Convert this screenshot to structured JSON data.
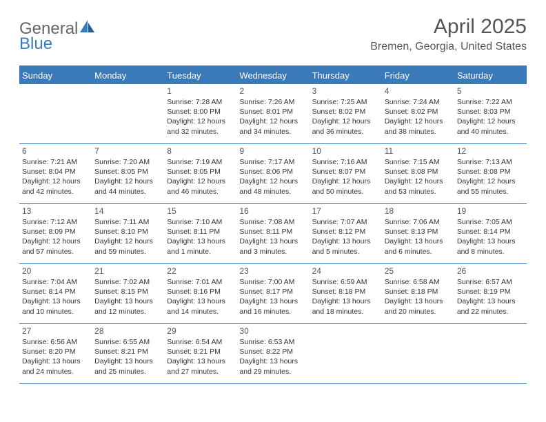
{
  "logo": {
    "word1": "General",
    "word2": "Blue"
  },
  "title": "April 2025",
  "location": "Bremen, Georgia, United States",
  "colors": {
    "brand": "#3a7ab8",
    "text": "#333333",
    "heading": "#555555",
    "background": "#ffffff"
  },
  "day_headers": [
    "Sunday",
    "Monday",
    "Tuesday",
    "Wednesday",
    "Thursday",
    "Friday",
    "Saturday"
  ],
  "weeks": [
    [
      null,
      null,
      {
        "n": "1",
        "sr": "Sunrise: 7:28 AM",
        "ss": "Sunset: 8:00 PM",
        "d1": "Daylight: 12 hours",
        "d2": "and 32 minutes."
      },
      {
        "n": "2",
        "sr": "Sunrise: 7:26 AM",
        "ss": "Sunset: 8:01 PM",
        "d1": "Daylight: 12 hours",
        "d2": "and 34 minutes."
      },
      {
        "n": "3",
        "sr": "Sunrise: 7:25 AM",
        "ss": "Sunset: 8:02 PM",
        "d1": "Daylight: 12 hours",
        "d2": "and 36 minutes."
      },
      {
        "n": "4",
        "sr": "Sunrise: 7:24 AM",
        "ss": "Sunset: 8:02 PM",
        "d1": "Daylight: 12 hours",
        "d2": "and 38 minutes."
      },
      {
        "n": "5",
        "sr": "Sunrise: 7:22 AM",
        "ss": "Sunset: 8:03 PM",
        "d1": "Daylight: 12 hours",
        "d2": "and 40 minutes."
      }
    ],
    [
      {
        "n": "6",
        "sr": "Sunrise: 7:21 AM",
        "ss": "Sunset: 8:04 PM",
        "d1": "Daylight: 12 hours",
        "d2": "and 42 minutes."
      },
      {
        "n": "7",
        "sr": "Sunrise: 7:20 AM",
        "ss": "Sunset: 8:05 PM",
        "d1": "Daylight: 12 hours",
        "d2": "and 44 minutes."
      },
      {
        "n": "8",
        "sr": "Sunrise: 7:19 AM",
        "ss": "Sunset: 8:05 PM",
        "d1": "Daylight: 12 hours",
        "d2": "and 46 minutes."
      },
      {
        "n": "9",
        "sr": "Sunrise: 7:17 AM",
        "ss": "Sunset: 8:06 PM",
        "d1": "Daylight: 12 hours",
        "d2": "and 48 minutes."
      },
      {
        "n": "10",
        "sr": "Sunrise: 7:16 AM",
        "ss": "Sunset: 8:07 PM",
        "d1": "Daylight: 12 hours",
        "d2": "and 50 minutes."
      },
      {
        "n": "11",
        "sr": "Sunrise: 7:15 AM",
        "ss": "Sunset: 8:08 PM",
        "d1": "Daylight: 12 hours",
        "d2": "and 53 minutes."
      },
      {
        "n": "12",
        "sr": "Sunrise: 7:13 AM",
        "ss": "Sunset: 8:08 PM",
        "d1": "Daylight: 12 hours",
        "d2": "and 55 minutes."
      }
    ],
    [
      {
        "n": "13",
        "sr": "Sunrise: 7:12 AM",
        "ss": "Sunset: 8:09 PM",
        "d1": "Daylight: 12 hours",
        "d2": "and 57 minutes."
      },
      {
        "n": "14",
        "sr": "Sunrise: 7:11 AM",
        "ss": "Sunset: 8:10 PM",
        "d1": "Daylight: 12 hours",
        "d2": "and 59 minutes."
      },
      {
        "n": "15",
        "sr": "Sunrise: 7:10 AM",
        "ss": "Sunset: 8:11 PM",
        "d1": "Daylight: 13 hours",
        "d2": "and 1 minute."
      },
      {
        "n": "16",
        "sr": "Sunrise: 7:08 AM",
        "ss": "Sunset: 8:11 PM",
        "d1": "Daylight: 13 hours",
        "d2": "and 3 minutes."
      },
      {
        "n": "17",
        "sr": "Sunrise: 7:07 AM",
        "ss": "Sunset: 8:12 PM",
        "d1": "Daylight: 13 hours",
        "d2": "and 5 minutes."
      },
      {
        "n": "18",
        "sr": "Sunrise: 7:06 AM",
        "ss": "Sunset: 8:13 PM",
        "d1": "Daylight: 13 hours",
        "d2": "and 6 minutes."
      },
      {
        "n": "19",
        "sr": "Sunrise: 7:05 AM",
        "ss": "Sunset: 8:14 PM",
        "d1": "Daylight: 13 hours",
        "d2": "and 8 minutes."
      }
    ],
    [
      {
        "n": "20",
        "sr": "Sunrise: 7:04 AM",
        "ss": "Sunset: 8:14 PM",
        "d1": "Daylight: 13 hours",
        "d2": "and 10 minutes."
      },
      {
        "n": "21",
        "sr": "Sunrise: 7:02 AM",
        "ss": "Sunset: 8:15 PM",
        "d1": "Daylight: 13 hours",
        "d2": "and 12 minutes."
      },
      {
        "n": "22",
        "sr": "Sunrise: 7:01 AM",
        "ss": "Sunset: 8:16 PM",
        "d1": "Daylight: 13 hours",
        "d2": "and 14 minutes."
      },
      {
        "n": "23",
        "sr": "Sunrise: 7:00 AM",
        "ss": "Sunset: 8:17 PM",
        "d1": "Daylight: 13 hours",
        "d2": "and 16 minutes."
      },
      {
        "n": "24",
        "sr": "Sunrise: 6:59 AM",
        "ss": "Sunset: 8:18 PM",
        "d1": "Daylight: 13 hours",
        "d2": "and 18 minutes."
      },
      {
        "n": "25",
        "sr": "Sunrise: 6:58 AM",
        "ss": "Sunset: 8:18 PM",
        "d1": "Daylight: 13 hours",
        "d2": "and 20 minutes."
      },
      {
        "n": "26",
        "sr": "Sunrise: 6:57 AM",
        "ss": "Sunset: 8:19 PM",
        "d1": "Daylight: 13 hours",
        "d2": "and 22 minutes."
      }
    ],
    [
      {
        "n": "27",
        "sr": "Sunrise: 6:56 AM",
        "ss": "Sunset: 8:20 PM",
        "d1": "Daylight: 13 hours",
        "d2": "and 24 minutes."
      },
      {
        "n": "28",
        "sr": "Sunrise: 6:55 AM",
        "ss": "Sunset: 8:21 PM",
        "d1": "Daylight: 13 hours",
        "d2": "and 25 minutes."
      },
      {
        "n": "29",
        "sr": "Sunrise: 6:54 AM",
        "ss": "Sunset: 8:21 PM",
        "d1": "Daylight: 13 hours",
        "d2": "and 27 minutes."
      },
      {
        "n": "30",
        "sr": "Sunrise: 6:53 AM",
        "ss": "Sunset: 8:22 PM",
        "d1": "Daylight: 13 hours",
        "d2": "and 29 minutes."
      },
      null,
      null,
      null
    ]
  ]
}
